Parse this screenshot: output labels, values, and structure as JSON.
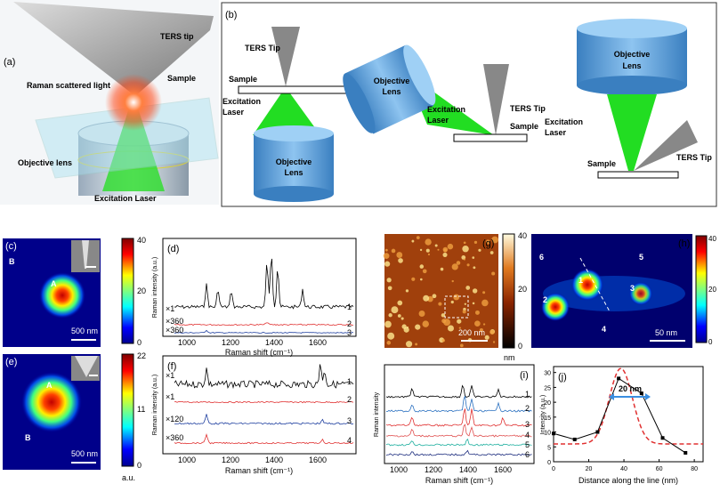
{
  "panel_a": {
    "label": "(a)",
    "tip": "TERS tip",
    "raman": "Raman scattered light",
    "sample": "Sample",
    "objective": "Objective lens",
    "laser": "Excitation Laser"
  },
  "panel_b": {
    "label": "(b)",
    "config_1": {
      "tip": "TERS Tip",
      "sample": "Sample",
      "laser": [
        "Excitation",
        "Laser"
      ],
      "objective": [
        "Objective",
        "Lens"
      ]
    },
    "config_2": {
      "objective": [
        "Objective",
        "Lens"
      ],
      "laser": [
        "Excitation",
        "Laser"
      ],
      "tip": "TERS Tip",
      "sample": "Sample"
    },
    "config_3": {
      "objective": [
        "Objective",
        "Lens"
      ],
      "laser": [
        "Excitation",
        "Laser"
      ],
      "sample": "Sample",
      "tip": "TERS Tip"
    }
  },
  "panel_c": {
    "label": "(c)",
    "point_b": "B",
    "point_a": "A",
    "scale": "500 nm",
    "colorbar": [
      "40",
      "20",
      "0"
    ]
  },
  "panel_d": {
    "label": "(d)",
    "factors": [
      "×1",
      "×360",
      "×360"
    ],
    "traces": [
      "1",
      "2",
      "3"
    ],
    "ylabel": "Raman intensity (a.u.)",
    "xlabel": "Raman shift (cm⁻¹)",
    "xticks": [
      "1000",
      "1200",
      "1400",
      "1600"
    ]
  },
  "panel_e": {
    "label": "(e)",
    "point_a": "A",
    "point_b": "B",
    "scale": "500 nm",
    "colorbar": [
      "22",
      "11",
      "0"
    ],
    "unit": "a.u."
  },
  "panel_f": {
    "label": "(f)",
    "factors": [
      "×1",
      "×1",
      "×120",
      "×360"
    ],
    "traces": [
      "1",
      "2",
      "3",
      "4"
    ],
    "ylabel": "Raman intensity (a.u.)",
    "xlabel": "Raman shift (cm⁻¹)",
    "xticks": [
      "1000",
      "1200",
      "1400",
      "1600"
    ]
  },
  "panel_g": {
    "label": "(g)",
    "scale": "200 nm",
    "colorbar": [
      "40",
      "20",
      "0"
    ],
    "unit": "nm"
  },
  "panel_h": {
    "label": "(h)",
    "points": [
      "1",
      "2",
      "3",
      "4",
      "5",
      "6"
    ],
    "scale": "50 nm",
    "colorbar": [
      "40",
      "20",
      "0"
    ]
  },
  "panel_i": {
    "label": "(i)",
    "traces": [
      "1",
      "2",
      "3",
      "4",
      "5",
      "6"
    ],
    "ylabel": "Raman intensity",
    "xlabel": "Raman shift (cm⁻¹)",
    "xticks": [
      "1000",
      "1200",
      "1400",
      "1600"
    ]
  },
  "panel_j": {
    "label": "(j)",
    "annotation": "20 nm",
    "xlabel": "Distance along the line (nm)",
    "ylabel": "Intensity (a.u.)",
    "x": [
      0,
      12,
      25,
      37,
      50,
      62,
      75
    ],
    "values": [
      9.5,
      7.5,
      10,
      28,
      23,
      8,
      3
    ],
    "xlim": [
      0,
      85
    ],
    "ylim": [
      0,
      32
    ],
    "xticks": [
      0,
      20,
      40,
      60,
      80
    ],
    "yticks": [
      0,
      5,
      10,
      15,
      20,
      25,
      30
    ],
    "color": "#000000"
  }
}
